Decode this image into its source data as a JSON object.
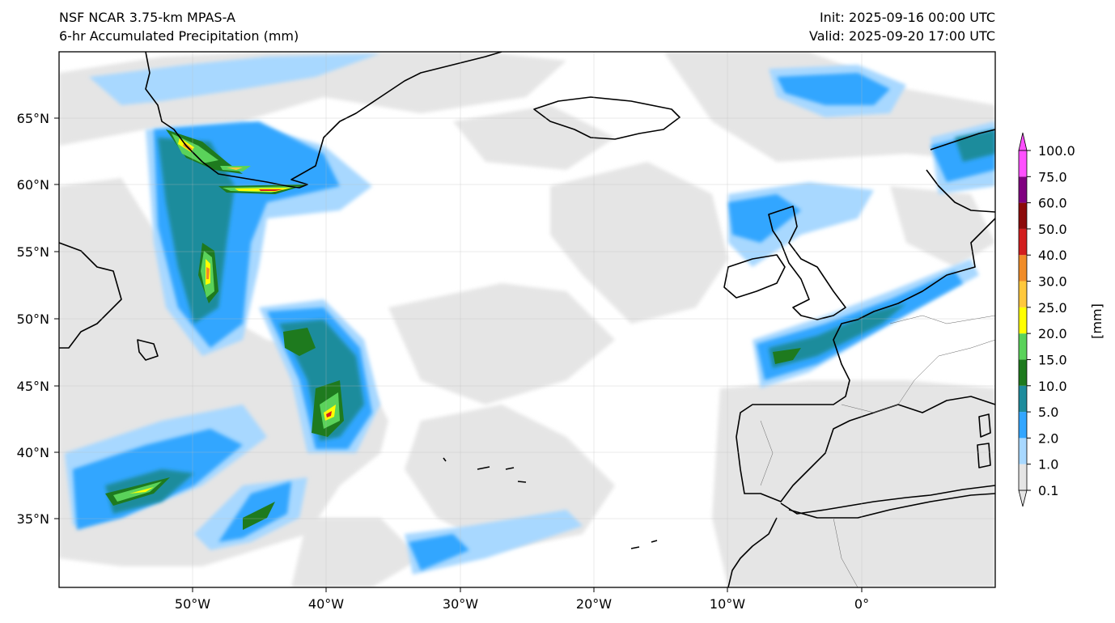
{
  "header": {
    "model": "NSF NCAR 3.75-km MPAS-A",
    "field": "6-hr Accumulated Precipitation (mm)",
    "init": "Init: 2025-09-16 00:00 UTC",
    "valid": "Valid: 2025-09-20 17:00 UTC"
  },
  "map": {
    "lat_labels": [
      "65°N",
      "60°N",
      "55°N",
      "50°N",
      "45°N",
      "40°N",
      "35°N"
    ],
    "lon_labels": [
      "50°W",
      "40°W",
      "30°W",
      "20°W",
      "10°W",
      "0°"
    ],
    "background": "#ffffff",
    "coastline_color": "#000000",
    "gridlines": true
  },
  "colorbar": {
    "unit_label": "[mm]",
    "levels": [
      "0.1",
      "1.0",
      "2.0",
      "5.0",
      "10.0",
      "15.0",
      "20.0",
      "25.0",
      "30.0",
      "40.0",
      "50.0",
      "60.0",
      "75.0",
      "100.0"
    ],
    "colors": [
      "#e5e5e5",
      "#a8d8ff",
      "#33a6ff",
      "#1e8c9c",
      "#1e7a1e",
      "#5ad25a",
      "#ffff00",
      "#ffc83c",
      "#f08c28",
      "#d21e1e",
      "#8c0a0a",
      "#800080",
      "#ff50ff"
    ],
    "extend": "both"
  }
}
